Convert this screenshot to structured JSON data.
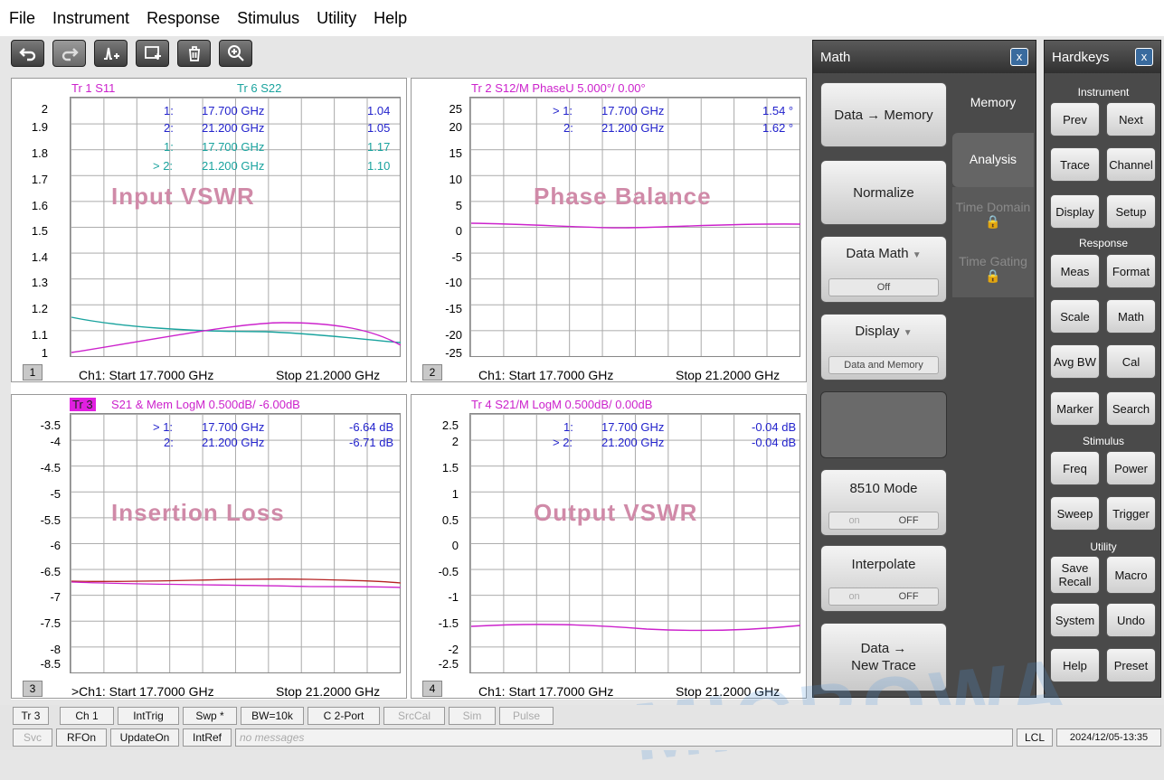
{
  "menu": [
    "File",
    "Instrument",
    "Response",
    "Stimulus",
    "Utility",
    "Help"
  ],
  "toolbar": {
    "icons": [
      "undo-icon",
      "redo-icon",
      "add-trace-icon",
      "channel-trace-icon",
      "trash-icon",
      "zoom-icon"
    ]
  },
  "p1": {
    "t1": "Tr 1  S11",
    "t2": "Tr 6  S22",
    "label": "Input VSWR",
    "num": "1",
    "foot_left": "Ch1:  Start  17.7000 GHz",
    "foot_right": "Stop  21.2000 GHz",
    "y": [
      "2",
      "1.9",
      "1.8",
      "1.7",
      "1.6",
      "1.5",
      "1.4",
      "1.3",
      "1.2",
      "1.1",
      "1"
    ],
    "m": [
      [
        "1:",
        "17.700  GHz",
        "1.04"
      ],
      [
        "2:",
        "21.200  GHz",
        "1.05"
      ],
      [
        "1:",
        "17.700  GHz",
        "1.17"
      ],
      [
        "> 2:",
        "21.200  GHz",
        "1.10"
      ]
    ]
  },
  "p2": {
    "t": "Tr 2  S12/M PhaseU 5.000°/  0.00°",
    "label": "Phase Balance",
    "num": "2",
    "foot_left": "Ch1:  Start  17.7000 GHz",
    "foot_right": "Stop  21.2000 GHz",
    "y": [
      "25",
      "20",
      "15",
      "10",
      "5",
      "0",
      "-5",
      "-10",
      "-15",
      "-20",
      "-25"
    ],
    "m": [
      [
        "> 1:",
        "17.700  GHz",
        "1.54 °"
      ],
      [
        "2:",
        "21.200  GHz",
        "1.62 °"
      ]
    ]
  },
  "p3": {
    "tr": "Tr 3",
    "t": "S21 & Mem LogM 0.500dB/  -6.00dB",
    "label": "Insertion Loss",
    "num": "3",
    "foot_left": ">Ch1:  Start  17.7000 GHz",
    "foot_right": "Stop  21.2000 GHz",
    "y": [
      "-3.5",
      "-4",
      "-4.5",
      "-5",
      "-5.5",
      "-6",
      "-6.5",
      "-7",
      "-7.5",
      "-8",
      "-8.5"
    ],
    "m": [
      [
        "> 1:",
        "17.700  GHz",
        "-6.64 dB"
      ],
      [
        "2:",
        "21.200  GHz",
        "-6.71 dB"
      ]
    ]
  },
  "p4": {
    "t": "Tr 4  S21/M LogM 0.500dB/  0.00dB",
    "label": "Output VSWR",
    "num": "4",
    "foot_left": "Ch1:  Start  17.7000 GHz",
    "foot_right": "Stop  21.2000 GHz",
    "y": [
      "2.5",
      "2",
      "1.5",
      "1",
      "0.5",
      "0",
      "-0.5",
      "-1",
      "-1.5",
      "-2",
      "-2.5"
    ],
    "m": [
      [
        "1:",
        "17.700  GHz",
        "-0.04 dB"
      ],
      [
        "> 2:",
        "21.200  GHz",
        "-0.04 dB"
      ]
    ]
  },
  "math": {
    "title": "Math",
    "close": "x",
    "data_memory": "Data → Memory",
    "normalize": "Normalize",
    "data_math": "Data Math",
    "data_math_val": "Off",
    "display": "Display",
    "display_val": "Data and Memory",
    "mode8510": "8510 Mode",
    "interp": "Interpolate",
    "on": "on",
    "off": "OFF",
    "new_trace_1": "Data →",
    "new_trace_2": "New Trace",
    "tabs": [
      "Memory",
      "Analysis",
      "Time Domain",
      "Time Gating"
    ]
  },
  "hard": {
    "title": "Hardkeys",
    "close": "x",
    "sec": [
      "Instrument",
      "Response",
      "Stimulus",
      "Utility"
    ],
    "keys": [
      [
        "Prev",
        "Next"
      ],
      [
        "Trace",
        "Channel"
      ],
      [
        "Display",
        "Setup"
      ],
      [
        "Meas",
        "Format"
      ],
      [
        "Scale",
        "Math"
      ],
      [
        "Avg BW",
        "Cal"
      ],
      [
        "Marker",
        "Search"
      ],
      [
        "Freq",
        "Power"
      ],
      [
        "Sweep",
        "Trigger"
      ],
      [
        "Save Recall",
        "Macro"
      ],
      [
        "System",
        "Undo"
      ],
      [
        "Help",
        "Preset"
      ]
    ]
  },
  "status": {
    "row1": [
      "Tr 3",
      "Ch 1",
      "IntTrig",
      "Swp *",
      "BW=10k",
      "C  2-Port",
      "SrcCal",
      "Sim",
      "Pulse"
    ],
    "row2": [
      "Svc",
      "RFOn",
      "UpdateOn",
      "IntRef",
      "no messages"
    ],
    "lcl": "LCL",
    "time": "2024/12/05-13:35"
  },
  "watermark": "MICROWA"
}
